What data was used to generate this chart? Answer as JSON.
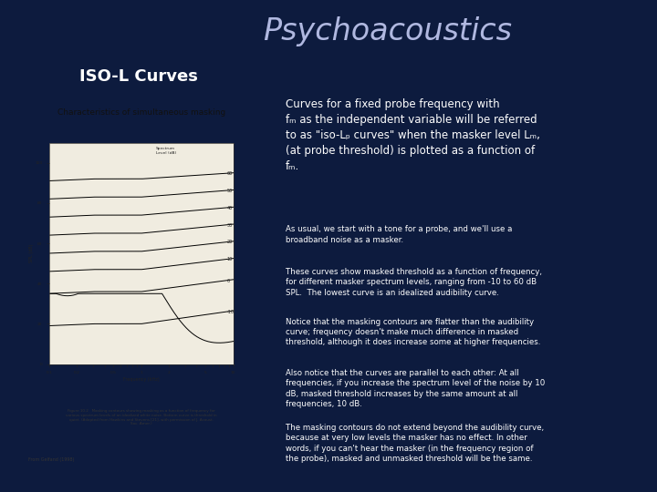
{
  "title": "Psychoacoustics",
  "subtitle": "ISO-L Curves",
  "bg_color": "#0d1b3e",
  "title_color": "#b0b8e0",
  "subtitle_color": "#ffffff",
  "red_box_bg": "#7a0000",
  "red_box_border": "#cc2222",
  "blue_box_bg": "#1e2d5a",
  "left_panel_bg": "#dedad0",
  "left_panel_title": "Characteristics of simultaneous masking",
  "red_box_line1": "Curves for a fixed probe frequency with",
  "red_box_line2": "fₘ as the independent variable will be referred",
  "red_box_line3": "to as \"iso-Lₚ curves\" when the masker level Lₘ,",
  "red_box_line4": "(at probe threshold) is plotted as a function of",
  "red_box_line5": "fₘ.",
  "paragraph1": "As usual, we start with a tone for a probe, and we'll use a\nbroadband noise as a masker.",
  "paragraph2": "These curves show masked threshold as a function of frequency,\nfor different masker spectrum levels, ranging from -10 to 60 dB\nSPL.  The lowest curve is an idealized audibility curve.",
  "paragraph3": "Notice that the masking contours are flatter than the audibility\ncurve; frequency doesn't make much difference in masked\nthreshold, although it does increase some at higher frequencies.",
  "paragraph4": "Also notice that the curves are parallel to each other: At all\nfrequencies, if you increase the spectrum level of the noise by 10\ndB, masked threshold increases by the same amount at all\nfrequencies, 10 dB.",
  "paragraph5": "The masking contours do not extend beyond the audibility curve,\nbecause at very low levels the masker has no effect. In other\nwords, if you can't hear the masker (in the frequency region of\nthe probe), masked and unmasked threshold will be the same.",
  "fig_caption_small": "Figure 10.2   Masking contours showing masking as a function of frequency for\nvarious spectrum levels of an idealized white noise. Bottom curve is threshold in\nquiet. (Adapted from Hawkins and Stevens [21], with permission of J. Acoust.\nSoc. Amer.)",
  "fig_caption_bottom": "From Gelfand (1998)",
  "separator_color": "#5050a0",
  "chart_bg": "#f0ece0"
}
